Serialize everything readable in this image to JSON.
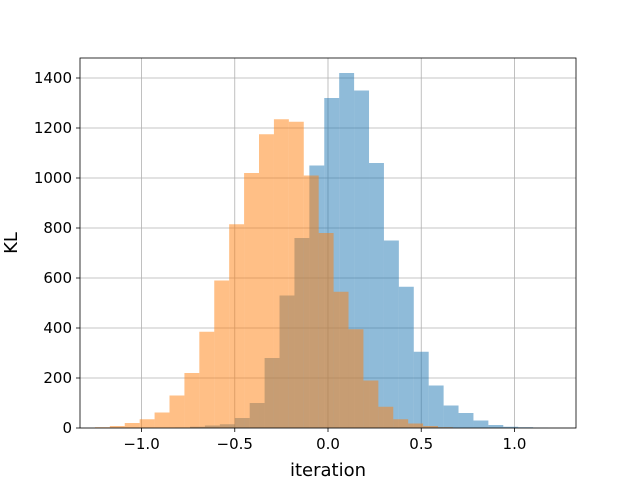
{
  "chart_data": {
    "type": "bar",
    "title": "",
    "xlabel": "iteration",
    "ylabel": "KL",
    "xlim": [
      -1.33,
      1.33
    ],
    "ylim": [
      0,
      1480
    ],
    "grid": true,
    "bin_width": 0.08,
    "xticks": [
      -1.0,
      -0.5,
      0.0,
      0.5,
      1.0
    ],
    "xtick_labels": [
      "−1.0",
      "−0.5",
      "0.0",
      "0.5",
      "1.0"
    ],
    "yticks": [
      0,
      200,
      400,
      600,
      800,
      1000,
      1200,
      1400
    ],
    "ytick_labels": [
      "0",
      "200",
      "400",
      "600",
      "800",
      "1000",
      "1200",
      "1400"
    ],
    "series": [
      {
        "color": "#1f77b4",
        "alpha": 0.5,
        "bin_starts": [
          -0.82,
          -0.74,
          -0.66,
          -0.58,
          -0.5,
          -0.42,
          -0.34,
          -0.26,
          -0.18,
          -0.1,
          -0.02,
          0.06,
          0.14,
          0.22,
          0.3,
          0.38,
          0.46,
          0.54,
          0.62,
          0.7,
          0.78,
          0.86,
          0.94,
          1.02,
          1.1
        ],
        "values": [
          2,
          5,
          10,
          15,
          40,
          100,
          280,
          530,
          760,
          1050,
          1320,
          1420,
          1350,
          1060,
          750,
          565,
          305,
          170,
          90,
          60,
          30,
          12,
          5,
          3,
          1
        ]
      },
      {
        "color": "#ff7f0e",
        "alpha": 0.5,
        "bin_starts": [
          -1.25,
          -1.17,
          -1.09,
          -1.01,
          -0.93,
          -0.85,
          -0.77,
          -0.69,
          -0.61,
          -0.53,
          -0.45,
          -0.37,
          -0.29,
          -0.21,
          -0.13,
          -0.05,
          0.03,
          0.11,
          0.19,
          0.27,
          0.35,
          0.43,
          0.51,
          0.59
        ],
        "values": [
          3,
          8,
          20,
          35,
          62,
          130,
          220,
          385,
          590,
          815,
          1020,
          1175,
          1235,
          1225,
          1010,
          780,
          545,
          395,
          190,
          85,
          35,
          18,
          8,
          3
        ]
      }
    ]
  }
}
